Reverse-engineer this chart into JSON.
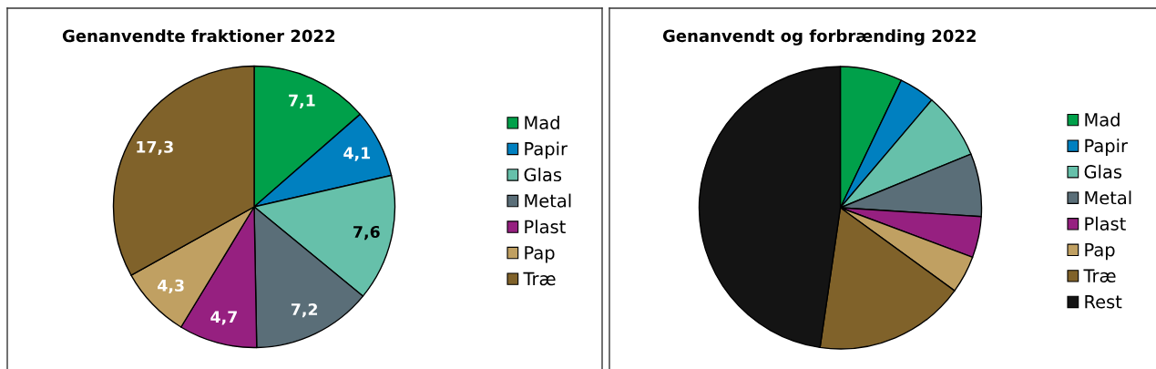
{
  "chart_data": [
    {
      "type": "pie",
      "title": "Genanvendte fraktioner 2022",
      "categories": [
        "Mad",
        "Papir",
        "Glas",
        "Metal",
        "Plast",
        "Pap",
        "Træ"
      ],
      "values": [
        7.1,
        4.1,
        7.6,
        7.2,
        4.7,
        4.3,
        17.3
      ],
      "colors": [
        "#00a04a",
        "#0080c0",
        "#66c0aa",
        "#5a6e78",
        "#962080",
        "#c0a062",
        "#80622a"
      ],
      "value_labels": [
        "7,1",
        "4,1",
        "7,6",
        "7,2",
        "4,7",
        "4,3",
        "17,3"
      ],
      "legend": "right"
    },
    {
      "type": "pie",
      "title": "Genanvendt og forbrænding 2022",
      "categories": [
        "Mad",
        "Papir",
        "Glas",
        "Metal",
        "Plast",
        "Pap",
        "Træ",
        "Rest"
      ],
      "values": [
        7.1,
        4.1,
        7.6,
        7.2,
        4.7,
        4.3,
        17.3,
        47.7
      ],
      "colors": [
        "#00a04a",
        "#0080c0",
        "#66c0aa",
        "#5a6e78",
        "#962080",
        "#c0a062",
        "#80622a",
        "#141414"
      ],
      "legend": "right"
    }
  ]
}
